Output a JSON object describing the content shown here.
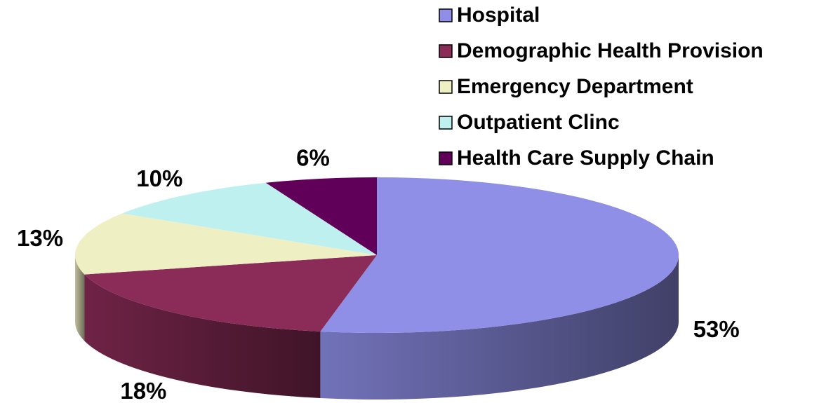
{
  "chart_data": {
    "type": "pie3d",
    "categories": [
      "Hospital",
      "Demographic Health Provision",
      "Emergency Department",
      "Outpatient Clinc",
      "Health Care Supply Chain"
    ],
    "values": [
      53,
      18,
      13,
      10,
      6
    ],
    "value_labels": [
      "53%",
      "18%",
      "13%",
      "10%",
      "6%"
    ],
    "colors": [
      "#8f8fe8",
      "#8b2c58",
      "#efefc4",
      "#bff0f0",
      "#600058"
    ],
    "legend": "upper right"
  }
}
